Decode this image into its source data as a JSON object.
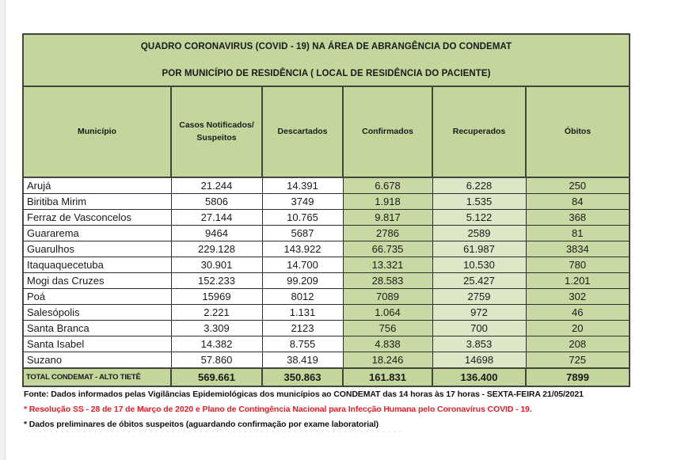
{
  "colors": {
    "header_green": "#c3d69b",
    "confirmados_obitos_green": "#c9d9a4",
    "recuperados_light_green": "#dde7c8",
    "border_dark": "#45453c",
    "note_red": "#ee1c25"
  },
  "table": {
    "title_line1": "QUADRO CORONAVIRUS (COVID - 19) NA ÁREA DE ABRANGÊNCIA DO CONDEMAT",
    "title_line2": "POR MUNICÍPIO DE RESIDÊNCIA ( LOCAL DE RESIDÊNCIA DO PACIENTE)",
    "columns": [
      "Município",
      "Casos Notificados/\nSuspeitos",
      "Descartados",
      "Confirmados",
      "Recuperados",
      "Óbitos"
    ],
    "rows": [
      {
        "municipio": "Arujá",
        "values": [
          "21.244",
          "14.391",
          "6.678",
          "6.228",
          "250"
        ]
      },
      {
        "municipio": "Biritiba Mirim",
        "values": [
          "5806",
          "3749",
          "1.918",
          "1.535",
          "84"
        ]
      },
      {
        "municipio": "Ferraz de Vasconcelos",
        "values": [
          "27.144",
          "10.765",
          "9.817",
          "5.122",
          "368"
        ]
      },
      {
        "municipio": "Guararema",
        "values": [
          "9464",
          "5687",
          "2786",
          "2589",
          "81"
        ]
      },
      {
        "municipio": "Guarulhos",
        "values": [
          "229.128",
          "143.922",
          "66.735",
          "61.987",
          "3834"
        ]
      },
      {
        "municipio": "Itaquaquecetuba",
        "values": [
          "30.901",
          "14.700",
          "13.321",
          "10.530",
          "780"
        ]
      },
      {
        "municipio": "Mogi das Cruzes",
        "values": [
          "152.233",
          "99.209",
          "28.583",
          "25.427",
          "1.201"
        ]
      },
      {
        "municipio": "Poá",
        "values": [
          "15969",
          "8012",
          "7089",
          "2759",
          "302"
        ]
      },
      {
        "municipio": "Salesópolis",
        "values": [
          "2.221",
          "1.131",
          "1.064",
          "972",
          "46"
        ]
      },
      {
        "municipio": "Santa Branca",
        "values": [
          "3.309",
          "2123",
          "756",
          "700",
          "20"
        ]
      },
      {
        "municipio": "Santa Isabel",
        "values": [
          "14.382",
          "8.755",
          "4.838",
          "3.853",
          "208"
        ]
      },
      {
        "municipio": "Suzano",
        "values": [
          "57.860",
          "38.419",
          "18.246",
          "14698",
          "725"
        ]
      }
    ],
    "total": {
      "label": "TOTAL CONDEMAT - ALTO TIETÊ",
      "values": [
        "569.661",
        "350.863",
        "161.831",
        "136.400",
        "7899"
      ]
    }
  },
  "footnotes": [
    "Fonte: Dados informados pelas Vigilâncias Epidemiológicas dos municípios ao CONDEMAT das 14 horas às 17 horas - SEXTA-FEIRA 21/05/2021",
    "* Resolução SS - 28 de 17 de Março de 2020 e Plano de Contingência Nacional para Infecção Humana pelo Coronavírus COVID - 19.",
    "* Dados preliminares de óbitos suspeitos (aguardando confirmação por exame laboratorial)"
  ],
  "chart_data": {
    "type": "table",
    "title": "QUADRO CORONAVIRUS (COVID - 19) NA ÁREA DE ABRANGÊNCIA DO CONDEMAT POR MUNICÍPIO DE RESIDÊNCIA",
    "columns": [
      "Município",
      "Casos Notificados/Suspeitos",
      "Descartados",
      "Confirmados",
      "Recuperados",
      "Óbitos"
    ],
    "rows": [
      [
        "Arujá",
        21244,
        14391,
        6678,
        6228,
        250
      ],
      [
        "Biritiba Mirim",
        5806,
        3749,
        1918,
        1535,
        84
      ],
      [
        "Ferraz de Vasconcelos",
        27144,
        10765,
        9817,
        5122,
        368
      ],
      [
        "Guararema",
        9464,
        5687,
        2786,
        2589,
        81
      ],
      [
        "Guarulhos",
        229128,
        143922,
        66735,
        61987,
        3834
      ],
      [
        "Itaquaquecetuba",
        30901,
        14700,
        13321,
        10530,
        780
      ],
      [
        "Mogi das Cruzes",
        152233,
        99209,
        28583,
        25427,
        1201
      ],
      [
        "Poá",
        15969,
        8012,
        7089,
        2759,
        302
      ],
      [
        "Salesópolis",
        2221,
        1131,
        1064,
        972,
        46
      ],
      [
        "Santa Branca",
        3309,
        2123,
        756,
        700,
        20
      ],
      [
        "Santa Isabel",
        14382,
        8755,
        4838,
        3853,
        208
      ],
      [
        "Suzano",
        57860,
        38419,
        18246,
        14698,
        725
      ],
      [
        "TOTAL CONDEMAT - ALTO TIETÊ",
        569661,
        350863,
        161831,
        136400,
        7899
      ]
    ]
  }
}
